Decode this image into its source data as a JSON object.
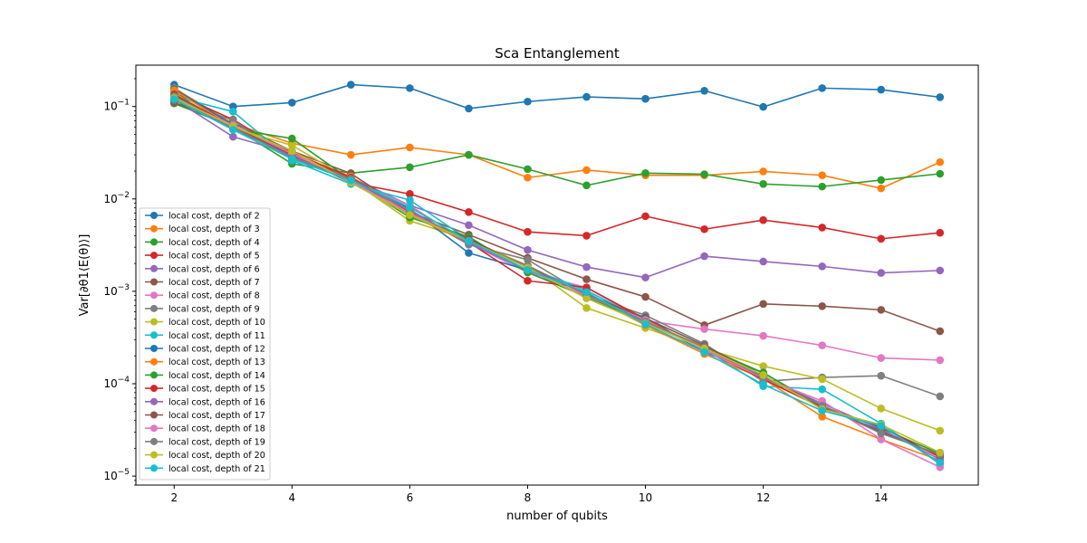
{
  "chart_data": {
    "type": "line",
    "title": "Sca Entanglement",
    "xlabel": "number of qubits",
    "ylabel": "Var[∂θ1⟨E(θ)⟩]",
    "xlim": [
      1.35,
      15.65
    ],
    "ylim": [
      8e-06,
      0.28
    ],
    "yscale": "log",
    "grid": false,
    "legend_position": "center-left",
    "x_ticks": [
      2,
      4,
      6,
      8,
      10,
      12,
      14
    ],
    "x_tick_labels": [
      "2",
      "4",
      "6",
      "8",
      "10",
      "12",
      "14"
    ],
    "y_ticks": [
      1e-05,
      0.0001,
      0.001,
      0.01,
      0.1
    ],
    "y_tick_labels": [
      "10−5",
      "10−4",
      "10−3",
      "10−2",
      "10−1"
    ],
    "x": [
      2,
      3,
      4,
      5,
      6,
      7,
      8,
      9,
      10,
      11,
      12,
      13,
      14,
      15
    ],
    "series": [
      {
        "name": "local cost, depth of 2",
        "color": "#1f77b4",
        "values": [
          0.172,
          0.1,
          0.11,
          0.172,
          0.158,
          0.095,
          0.113,
          0.127,
          0.121,
          0.148,
          0.099,
          0.158,
          0.152,
          0.126
        ]
      },
      {
        "name": "local cost, depth of 3",
        "color": "#ff7f0e",
        "values": [
          0.158,
          0.065,
          0.04,
          0.03,
          0.036,
          0.03,
          0.017,
          0.0205,
          0.018,
          0.018,
          0.0198,
          0.018,
          0.013,
          0.025
        ]
      },
      {
        "name": "local cost, depth of 4",
        "color": "#2ca02c",
        "values": [
          0.108,
          0.06,
          0.024,
          0.019,
          0.022,
          0.03,
          0.021,
          0.014,
          0.019,
          0.0185,
          0.0145,
          0.0136,
          0.016,
          0.0187
        ]
      },
      {
        "name": "local cost, depth of 5",
        "color": "#d62728",
        "values": [
          0.14,
          0.072,
          0.03,
          0.015,
          0.0113,
          0.0072,
          0.0044,
          0.004,
          0.0065,
          0.0047,
          0.0059,
          0.0049,
          0.0037,
          0.0043
        ]
      },
      {
        "name": "local cost, depth of 6",
        "color": "#9467bd",
        "values": [
          0.12,
          0.047,
          0.031,
          0.017,
          0.0085,
          0.0052,
          0.0028,
          0.00183,
          0.00141,
          0.0024,
          0.0021,
          0.00186,
          0.00158,
          0.00168
        ]
      },
      {
        "name": "local cost, depth of 7",
        "color": "#8c564b",
        "values": [
          0.11,
          0.066,
          0.033,
          0.0188,
          0.0072,
          0.0041,
          0.0023,
          0.00135,
          0.00087,
          0.00043,
          0.00073,
          0.00069,
          0.00063,
          0.00037
        ]
      },
      {
        "name": "local cost, depth of 8",
        "color": "#e377c2",
        "values": [
          0.127,
          0.062,
          0.03,
          0.016,
          0.0085,
          0.0033,
          0.0016,
          0.0011,
          0.00048,
          0.00039,
          0.00033,
          0.00026,
          0.00019,
          0.00018
        ]
      },
      {
        "name": "local cost, depth of 9",
        "color": "#7f7f7f",
        "values": [
          0.117,
          0.071,
          0.027,
          0.0168,
          0.0073,
          0.0032,
          0.0022,
          0.00091,
          0.00055,
          0.00027,
          0.000106,
          0.000117,
          0.000122,
          7.3e-05
        ]
      },
      {
        "name": "local cost, depth of 10",
        "color": "#bcbd22",
        "values": [
          0.14,
          0.058,
          0.038,
          0.016,
          0.0058,
          0.0036,
          0.0019,
          0.00066,
          0.0004,
          0.00024,
          0.000155,
          0.000112,
          5.4e-05,
          3.1e-05
        ]
      },
      {
        "name": "local cost, depth of 11",
        "color": "#17becf",
        "values": [
          0.128,
          0.088,
          0.026,
          0.0145,
          0.0097,
          0.0036,
          0.0018,
          0.00102,
          0.00048,
          0.00024,
          9.4e-05,
          8.7e-05,
          3.7e-05,
          1.35e-05
        ]
      },
      {
        "name": "local cost, depth of 12",
        "color": "#1f77b4",
        "values": [
          0.155,
          0.063,
          0.029,
          0.016,
          0.0078,
          0.0026,
          0.0017,
          0.00088,
          0.00052,
          0.00022,
          0.000132,
          5.5e-05,
          3.1e-05,
          1.65e-05
        ]
      },
      {
        "name": "local cost, depth of 13",
        "color": "#ff7f0e",
        "values": [
          0.15,
          0.06,
          0.031,
          0.0175,
          0.0066,
          0.0034,
          0.0019,
          0.00091,
          0.00043,
          0.00021,
          0.000113,
          4.4e-05,
          2.5e-05,
          1.48e-05
        ]
      },
      {
        "name": "local cost, depth of 14",
        "color": "#2ca02c",
        "values": [
          0.118,
          0.057,
          0.045,
          0.016,
          0.0063,
          0.0039,
          0.0016,
          0.00087,
          0.00047,
          0.00025,
          0.000131,
          5.7e-05,
          3.3e-05,
          1.75e-05
        ]
      },
      {
        "name": "local cost, depth of 15",
        "color": "#d62728",
        "values": [
          0.135,
          0.061,
          0.032,
          0.017,
          0.0072,
          0.0034,
          0.0013,
          0.0011,
          0.0005,
          0.00023,
          0.000112,
          5.5e-05,
          3.4e-05,
          1.6e-05
        ]
      },
      {
        "name": "local cost, depth of 16",
        "color": "#9467bd",
        "values": [
          0.125,
          0.058,
          0.029,
          0.0157,
          0.0076,
          0.0033,
          0.0017,
          0.00096,
          0.00046,
          0.00024,
          0.000118,
          6.1e-05,
          3.2e-05,
          1.52e-05
        ]
      },
      {
        "name": "local cost, depth of 17",
        "color": "#8c564b",
        "values": [
          0.132,
          0.06,
          0.03,
          0.0163,
          0.0068,
          0.0037,
          0.0018,
          0.00093,
          0.00051,
          0.00026,
          0.000121,
          5.8e-05,
          3e-05,
          1.68e-05
        ]
      },
      {
        "name": "local cost, depth of 18",
        "color": "#e377c2",
        "values": [
          0.121,
          0.063,
          0.031,
          0.0155,
          0.007,
          0.0035,
          0.0017,
          0.00089,
          0.00049,
          0.00023,
          0.000115,
          6.5e-05,
          2.5e-05,
          1.25e-05
        ]
      },
      {
        "name": "local cost, depth of 19",
        "color": "#7f7f7f",
        "values": [
          0.129,
          0.059,
          0.028,
          0.0165,
          0.0074,
          0.0034,
          0.0019,
          0.00092,
          0.00047,
          0.00025,
          0.000117,
          5.8e-05,
          2.9e-05,
          1.72e-05
        ]
      },
      {
        "name": "local cost, depth of 20",
        "color": "#bcbd22",
        "values": [
          0.124,
          0.061,
          0.033,
          0.015,
          0.0067,
          0.0035,
          0.0018,
          0.00084,
          0.00045,
          0.00024,
          0.000124,
          5.3e-05,
          3.6e-05,
          1.8e-05
        ]
      },
      {
        "name": "local cost, depth of 21",
        "color": "#17becf",
        "values": [
          0.12,
          0.056,
          0.027,
          0.0158,
          0.0081,
          0.0035,
          0.0017,
          0.00098,
          0.00044,
          0.00022,
          9.8e-05,
          5.1e-05,
          3.5e-05,
          1.4e-05
        ]
      }
    ]
  }
}
